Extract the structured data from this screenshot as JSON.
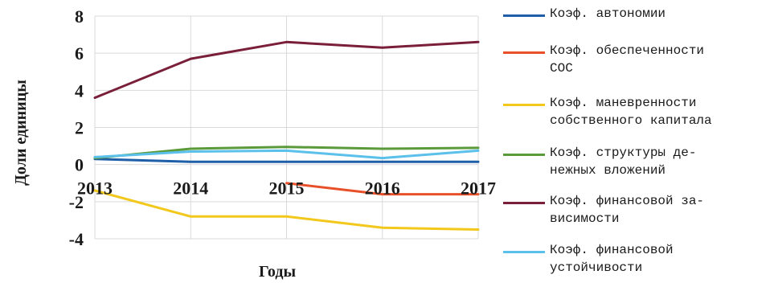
{
  "chart_data": {
    "type": "line",
    "title": "",
    "xlabel": "Годы",
    "ylabel": "Доли единицы",
    "x": [
      "2013",
      "2014",
      "2015",
      "2016",
      "2017"
    ],
    "ylim": [
      -4,
      8
    ],
    "yticks": [
      "8",
      "6",
      "4",
      "2",
      "0",
      "-2",
      "-4"
    ],
    "grid": true,
    "legend": "right",
    "series": [
      {
        "name": "Коэф. автономии",
        "color": "#1f5fa8",
        "values": [
          0.3,
          0.15,
          0.15,
          0.15,
          0.15
        ]
      },
      {
        "name": "Коэф. обеспеченности СОС",
        "color": "#e8502a",
        "values": [
          null,
          null,
          -1.0,
          -1.6,
          -1.6
        ]
      },
      {
        "name": "Коэф. маневренности собственного капитала",
        "color": "#f2c81c",
        "values": [
          -1.4,
          -2.8,
          -2.8,
          -3.4,
          -3.5
        ]
      },
      {
        "name": "Коэф. структуры денежных вложений",
        "color": "#5a9a3a",
        "values": [
          0.35,
          0.85,
          0.95,
          0.85,
          0.9
        ]
      },
      {
        "name": "Коэф. финансовой зависимости",
        "color": "#7a1f3a",
        "values": [
          3.6,
          5.7,
          6.6,
          6.3,
          6.6
        ]
      },
      {
        "name": "Коэф. финансовой устойчивости",
        "color": "#5bc0ea",
        "values": [
          0.4,
          0.7,
          0.75,
          0.35,
          0.75
        ]
      }
    ],
    "legend_labels": [
      "Коэф. автономии",
      "Коэф. обеспеченности\nСОС",
      "Коэф. маневренности\nсобственного капитала",
      "Коэф. структуры де-\nнежных вложений",
      "Коэф. финансовой за-\nвисимости",
      "Коэф. финансовой\nустойчивости"
    ]
  }
}
